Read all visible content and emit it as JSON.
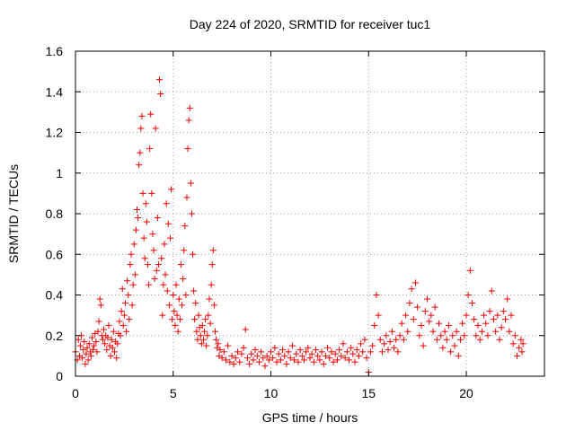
{
  "chart_data": {
    "type": "scatter",
    "title": "Day 224 of 2020, SRMTID for receiver tuc1",
    "xlabel": "GPS time / hours",
    "ylabel": "SRMTID / TECUs",
    "xlim": [
      0,
      24
    ],
    "ylim": [
      0,
      1.6
    ],
    "xticks": [
      0,
      5,
      10,
      15,
      20
    ],
    "yticks": [
      0,
      0.2,
      0.4,
      0.6,
      0.8,
      1,
      1.2,
      1.4,
      1.6
    ],
    "xtick_labels": [
      "0",
      "5",
      "10",
      "15",
      "20"
    ],
    "ytick_labels": [
      "0",
      "0.2",
      "0.4",
      "0.6",
      "0.8",
      "1",
      "1.2",
      "1.4",
      "1.6"
    ],
    "grid": true,
    "marker": "+",
    "color": "#ee0000",
    "series": [
      {
        "name": "SRMTID",
        "points": [
          [
            0.0,
            0.12
          ],
          [
            0.1,
            0.08
          ],
          [
            0.15,
            0.18
          ],
          [
            0.2,
            0.1
          ],
          [
            0.25,
            0.15
          ],
          [
            0.3,
            0.2
          ],
          [
            0.35,
            0.09
          ],
          [
            0.4,
            0.13
          ],
          [
            0.45,
            0.17
          ],
          [
            0.5,
            0.06
          ],
          [
            0.55,
            0.11
          ],
          [
            0.6,
            0.14
          ],
          [
            0.65,
            0.08
          ],
          [
            0.7,
            0.16
          ],
          [
            0.75,
            0.12
          ],
          [
            0.8,
            0.1
          ],
          [
            0.85,
            0.19
          ],
          [
            0.9,
            0.13
          ],
          [
            0.95,
            0.15
          ],
          [
            1.0,
            0.21
          ],
          [
            1.05,
            0.17
          ],
          [
            1.1,
            0.12
          ],
          [
            1.15,
            0.22
          ],
          [
            1.2,
            0.27
          ],
          [
            1.25,
            0.38
          ],
          [
            1.3,
            0.35
          ],
          [
            1.35,
            0.2
          ],
          [
            1.4,
            0.18
          ],
          [
            1.45,
            0.23
          ],
          [
            1.5,
            0.16
          ],
          [
            1.55,
            0.2
          ],
          [
            1.6,
            0.13
          ],
          [
            1.65,
            0.19
          ],
          [
            1.7,
            0.25
          ],
          [
            1.75,
            0.15
          ],
          [
            1.8,
            0.1
          ],
          [
            1.85,
            0.18
          ],
          [
            1.9,
            0.14
          ],
          [
            1.95,
            0.22
          ],
          [
            2.0,
            0.12
          ],
          [
            2.05,
            0.17
          ],
          [
            2.1,
            0.09
          ],
          [
            2.15,
            0.16
          ],
          [
            2.2,
            0.21
          ],
          [
            2.25,
            0.27
          ],
          [
            2.3,
            0.2
          ],
          [
            2.35,
            0.32
          ],
          [
            2.4,
            0.43
          ],
          [
            2.45,
            0.25
          ],
          [
            2.5,
            0.3
          ],
          [
            2.55,
            0.36
          ],
          [
            2.6,
            0.22
          ],
          [
            2.65,
            0.47
          ],
          [
            2.7,
            0.4
          ],
          [
            2.75,
            0.28
          ],
          [
            2.8,
            0.55
          ],
          [
            2.85,
            0.6
          ],
          [
            2.9,
            0.35
          ],
          [
            2.95,
            0.45
          ],
          [
            3.0,
            0.65
          ],
          [
            3.05,
            0.5
          ],
          [
            3.1,
            0.72
          ],
          [
            3.15,
            0.82
          ],
          [
            3.2,
            0.78
          ],
          [
            3.25,
            1.04
          ],
          [
            3.3,
            1.1
          ],
          [
            3.35,
            1.22
          ],
          [
            3.4,
            1.28
          ],
          [
            3.45,
            0.9
          ],
          [
            3.5,
            0.68
          ],
          [
            3.55,
            0.58
          ],
          [
            3.6,
            0.85
          ],
          [
            3.65,
            0.76
          ],
          [
            3.7,
            0.55
          ],
          [
            3.75,
            0.45
          ],
          [
            3.8,
            1.12
          ],
          [
            3.85,
            1.29
          ],
          [
            3.9,
            0.9
          ],
          [
            3.95,
            0.7
          ],
          [
            4.0,
            0.62
          ],
          [
            4.05,
            0.48
          ],
          [
            4.1,
            1.22
          ],
          [
            4.15,
            0.52
          ],
          [
            4.2,
            0.78
          ],
          [
            4.25,
            0.55
          ],
          [
            4.3,
            1.46
          ],
          [
            4.35,
            1.39
          ],
          [
            4.4,
            0.58
          ],
          [
            4.45,
            0.3
          ],
          [
            4.5,
            0.45
          ],
          [
            4.55,
            0.65
          ],
          [
            4.6,
            0.5
          ],
          [
            4.65,
            0.85
          ],
          [
            4.7,
            0.42
          ],
          [
            4.75,
            0.75
          ],
          [
            4.8,
            0.35
          ],
          [
            4.85,
            0.68
          ],
          [
            4.9,
            0.92
          ],
          [
            4.95,
            0.28
          ],
          [
            5.0,
            0.4
          ],
          [
            5.05,
            0.32
          ],
          [
            5.1,
            0.25
          ],
          [
            5.15,
            0.45
          ],
          [
            5.2,
            0.3
          ],
          [
            5.25,
            0.22
          ],
          [
            5.3,
            0.38
          ],
          [
            5.35,
            0.28
          ],
          [
            5.4,
            0.55
          ],
          [
            5.45,
            0.35
          ],
          [
            5.5,
            0.48
          ],
          [
            5.55,
            0.62
          ],
          [
            5.6,
            0.74
          ],
          [
            5.65,
            0.4
          ],
          [
            5.7,
            0.88
          ],
          [
            5.75,
            1.12
          ],
          [
            5.8,
            1.26
          ],
          [
            5.85,
            1.32
          ],
          [
            5.9,
            0.95
          ],
          [
            5.95,
            0.8
          ],
          [
            6.0,
            0.6
          ],
          [
            6.05,
            0.42
          ],
          [
            6.1,
            0.28
          ],
          [
            6.15,
            0.36
          ],
          [
            6.2,
            0.22
          ],
          [
            6.25,
            0.18
          ],
          [
            6.3,
            0.3
          ],
          [
            6.35,
            0.24
          ],
          [
            6.4,
            0.2
          ],
          [
            6.45,
            0.16
          ],
          [
            6.5,
            0.25
          ],
          [
            6.55,
            0.18
          ],
          [
            6.6,
            0.22
          ],
          [
            6.65,
            0.28
          ],
          [
            6.7,
            0.15
          ],
          [
            6.75,
            0.2
          ],
          [
            6.8,
            0.3
          ],
          [
            6.85,
            0.38
          ],
          [
            6.9,
            0.26
          ],
          [
            6.95,
            0.45
          ],
          [
            7.0,
            0.55
          ],
          [
            7.05,
            0.62
          ],
          [
            7.1,
            0.35
          ],
          [
            7.15,
            0.22
          ],
          [
            7.2,
            0.18
          ],
          [
            7.25,
            0.14
          ],
          [
            7.3,
            0.16
          ],
          [
            7.35,
            0.1
          ],
          [
            7.4,
            0.13
          ],
          [
            7.5,
            0.09
          ],
          [
            7.6,
            0.12
          ],
          [
            7.7,
            0.08
          ],
          [
            7.8,
            0.15
          ],
          [
            7.9,
            0.07
          ],
          [
            8.0,
            0.1
          ],
          [
            8.1,
            0.06
          ],
          [
            8.2,
            0.09
          ],
          [
            8.3,
            0.12
          ],
          [
            8.4,
            0.07
          ],
          [
            8.5,
            0.11
          ],
          [
            8.6,
            0.14
          ],
          [
            8.7,
            0.23
          ],
          [
            8.8,
            0.09
          ],
          [
            8.9,
            0.06
          ],
          [
            9.0,
            0.11
          ],
          [
            9.1,
            0.08
          ],
          [
            9.2,
            0.13
          ],
          [
            9.3,
            0.1
          ],
          [
            9.4,
            0.07
          ],
          [
            9.5,
            0.12
          ],
          [
            9.6,
            0.09
          ],
          [
            9.7,
            0.05
          ],
          [
            9.8,
            0.1
          ],
          [
            9.9,
            0.08
          ],
          [
            10.0,
            0.12
          ],
          [
            10.1,
            0.09
          ],
          [
            10.2,
            0.14
          ],
          [
            10.3,
            0.07
          ],
          [
            10.4,
            0.11
          ],
          [
            10.5,
            0.08
          ],
          [
            10.6,
            0.13
          ],
          [
            10.7,
            0.1
          ],
          [
            10.8,
            0.06
          ],
          [
            10.9,
            0.12
          ],
          [
            11.0,
            0.09
          ],
          [
            11.1,
            0.15
          ],
          [
            11.2,
            0.08
          ],
          [
            11.3,
            0.11
          ],
          [
            11.4,
            0.07
          ],
          [
            11.5,
            0.13
          ],
          [
            11.6,
            0.1
          ],
          [
            11.7,
            0.08
          ],
          [
            11.8,
            0.12
          ],
          [
            11.9,
            0.14
          ],
          [
            12.0,
            0.09
          ],
          [
            12.1,
            0.11
          ],
          [
            12.2,
            0.07
          ],
          [
            12.3,
            0.13
          ],
          [
            12.4,
            0.1
          ],
          [
            12.5,
            0.08
          ],
          [
            12.6,
            0.12
          ],
          [
            12.7,
            0.06
          ],
          [
            12.8,
            0.1
          ],
          [
            12.9,
            0.14
          ],
          [
            13.0,
            0.09
          ],
          [
            13.1,
            0.12
          ],
          [
            13.2,
            0.07
          ],
          [
            13.3,
            0.11
          ],
          [
            13.4,
            0.08
          ],
          [
            13.5,
            0.13
          ],
          [
            13.6,
            0.1
          ],
          [
            13.7,
            0.16
          ],
          [
            13.8,
            0.09
          ],
          [
            13.9,
            0.12
          ],
          [
            14.0,
            0.08
          ],
          [
            14.1,
            0.14
          ],
          [
            14.2,
            0.11
          ],
          [
            14.3,
            0.07
          ],
          [
            14.4,
            0.13
          ],
          [
            14.5,
            0.1
          ],
          [
            14.6,
            0.16
          ],
          [
            14.7,
            0.12
          ],
          [
            14.8,
            0.18
          ],
          [
            14.9,
            0.09
          ],
          [
            15.0,
            0.02
          ],
          [
            15.1,
            0.12
          ],
          [
            15.2,
            0.15
          ],
          [
            15.3,
            0.25
          ],
          [
            15.4,
            0.4
          ],
          [
            15.5,
            0.3
          ],
          [
            15.6,
            0.18
          ],
          [
            15.7,
            0.12
          ],
          [
            15.8,
            0.16
          ],
          [
            15.9,
            0.2
          ],
          [
            16.0,
            0.13
          ],
          [
            16.1,
            0.17
          ],
          [
            16.2,
            0.22
          ],
          [
            16.3,
            0.14
          ],
          [
            16.4,
            0.18
          ],
          [
            16.5,
            0.12
          ],
          [
            16.6,
            0.2
          ],
          [
            16.7,
            0.26
          ],
          [
            16.8,
            0.18
          ],
          [
            16.9,
            0.3
          ],
          [
            17.0,
            0.22
          ],
          [
            17.1,
            0.36
          ],
          [
            17.2,
            0.43
          ],
          [
            17.3,
            0.28
          ],
          [
            17.4,
            0.46
          ],
          [
            17.5,
            0.34
          ],
          [
            17.6,
            0.2
          ],
          [
            17.7,
            0.25
          ],
          [
            17.8,
            0.15
          ],
          [
            17.9,
            0.32
          ],
          [
            18.0,
            0.38
          ],
          [
            18.1,
            0.27
          ],
          [
            18.2,
            0.3
          ],
          [
            18.3,
            0.22
          ],
          [
            18.4,
            0.34
          ],
          [
            18.5,
            0.18
          ],
          [
            18.6,
            0.26
          ],
          [
            18.7,
            0.2
          ],
          [
            18.8,
            0.14
          ],
          [
            18.9,
            0.22
          ],
          [
            19.0,
            0.18
          ],
          [
            19.1,
            0.25
          ],
          [
            19.2,
            0.12
          ],
          [
            19.3,
            0.2
          ],
          [
            19.4,
            0.15
          ],
          [
            19.5,
            0.22
          ],
          [
            19.6,
            0.1
          ],
          [
            19.7,
            0.18
          ],
          [
            19.8,
            0.26
          ],
          [
            19.9,
            0.2
          ],
          [
            20.0,
            0.3
          ],
          [
            20.1,
            0.4
          ],
          [
            20.2,
            0.52
          ],
          [
            20.3,
            0.36
          ],
          [
            20.4,
            0.28
          ],
          [
            20.5,
            0.2
          ],
          [
            20.6,
            0.25
          ],
          [
            20.7,
            0.18
          ],
          [
            20.8,
            0.22
          ],
          [
            20.9,
            0.3
          ],
          [
            21.0,
            0.26
          ],
          [
            21.1,
            0.2
          ],
          [
            21.2,
            0.32
          ],
          [
            21.3,
            0.42
          ],
          [
            21.4,
            0.28
          ],
          [
            21.5,
            0.22
          ],
          [
            21.6,
            0.3
          ],
          [
            21.7,
            0.18
          ],
          [
            21.8,
            0.24
          ],
          [
            21.9,
            0.32
          ],
          [
            22.0,
            0.28
          ],
          [
            22.1,
            0.38
          ],
          [
            22.2,
            0.22
          ],
          [
            22.3,
            0.3
          ],
          [
            22.4,
            0.16
          ],
          [
            22.5,
            0.2
          ],
          [
            22.6,
            0.1
          ],
          [
            22.7,
            0.14
          ],
          [
            22.8,
            0.18
          ],
          [
            22.85,
            0.12
          ],
          [
            22.9,
            0.16
          ]
        ]
      }
    ]
  }
}
